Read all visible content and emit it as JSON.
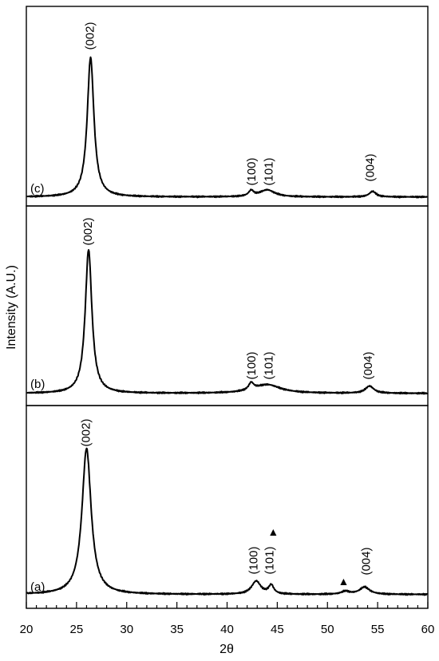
{
  "chart_data": {
    "type": "line",
    "xlabel": "2θ",
    "ylabel": "Intensity (A.U.)",
    "xlim": [
      20,
      60
    ],
    "x_ticks": [
      "20",
      "25",
      "30",
      "35",
      "40",
      "45",
      "50",
      "55",
      "60"
    ],
    "grid": false,
    "panels": [
      {
        "label": "(c)",
        "baseline": 0.03,
        "peaks": [
          {
            "x": 26.4,
            "height": 1.0,
            "hwhm": 0.4
          },
          {
            "x": 42.4,
            "height": 0.04,
            "hwhm": 0.3
          },
          {
            "x": 44.0,
            "height": 0.05,
            "hwhm": 0.9
          },
          {
            "x": 54.5,
            "height": 0.04,
            "hwhm": 0.4
          }
        ],
        "annotations": [
          {
            "text": "(002)",
            "x": 26.4
          },
          {
            "text": "(100)",
            "x": 42.5
          },
          {
            "text": "(101)",
            "x": 44.2
          },
          {
            "text": "(004)",
            "x": 54.3
          }
        ]
      },
      {
        "label": "(b)",
        "baseline": 0.04,
        "peaks": [
          {
            "x": 26.2,
            "height": 1.0,
            "hwhm": 0.4
          },
          {
            "x": 42.4,
            "height": 0.05,
            "hwhm": 0.3
          },
          {
            "x": 44.0,
            "height": 0.06,
            "hwhm": 1.6
          },
          {
            "x": 54.2,
            "height": 0.05,
            "hwhm": 0.5
          }
        ],
        "annotations": [
          {
            "text": "(002)",
            "x": 26.2
          },
          {
            "text": "(100)",
            "x": 42.5
          },
          {
            "text": "(101)",
            "x": 44.2
          },
          {
            "text": "(004)",
            "x": 54.1
          }
        ]
      },
      {
        "label": "(a)",
        "baseline": 0.04,
        "peaks": [
          {
            "x": 26.0,
            "height": 1.0,
            "hwhm": 0.55
          },
          {
            "x": 42.9,
            "height": 0.09,
            "hwhm": 0.55
          },
          {
            "x": 44.4,
            "height": 0.06,
            "hwhm": 0.3
          },
          {
            "x": 51.8,
            "height": 0.02,
            "hwhm": 0.5
          },
          {
            "x": 53.7,
            "height": 0.05,
            "hwhm": 0.6
          }
        ],
        "annotations": [
          {
            "text": "(002)",
            "x": 26.0
          },
          {
            "text": "(100)",
            "x": 42.7
          },
          {
            "text": "(101)",
            "x": 44.3
          },
          {
            "text": "(004)",
            "x": 53.9
          }
        ],
        "markers": [
          {
            "symbol": "▲",
            "x": 44.6
          },
          {
            "symbol": "▲",
            "x": 51.6
          }
        ]
      }
    ]
  }
}
